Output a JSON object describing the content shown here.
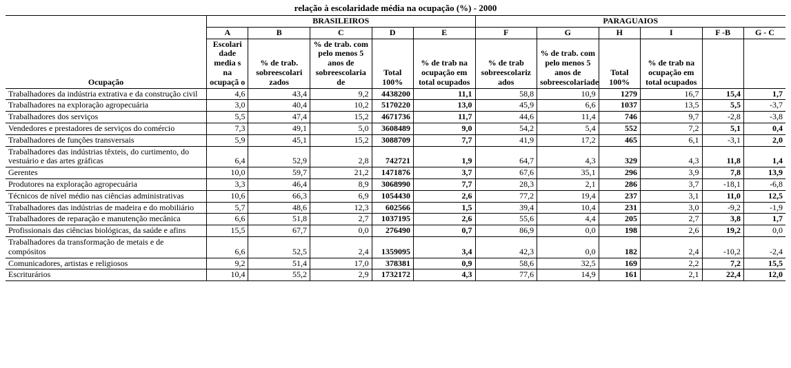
{
  "title_fragment": "relação à escolaridade média na ocupação (%) - 2000",
  "group_labels": {
    "br": "BRASILEIROS",
    "py": "PARAGUAIOS"
  },
  "col_letters": {
    "A": "A",
    "B": "B",
    "C": "C",
    "D": "D",
    "E": "E",
    "F": "F",
    "G": "G",
    "H": "H",
    "I": "I",
    "FB": "F -B",
    "GC": "G - C"
  },
  "col_headers": {
    "occ": "Ocupação",
    "A": "Escolari dade media s na ocupaçã o",
    "B": "% de trab. sobreescolari zados",
    "C": "% de trab. com pelo menos 5 anos de sobreescolaria de",
    "D": "Total\n100%",
    "E": "% de trab na ocupação em total ocupados",
    "F": "% de trab sobreescolariz ados",
    "G": "% de trab. com pelo menos 5 anos de sobreescolariade",
    "H": "Total\n100%",
    "I": "% de trab na ocupação em total ocupados"
  },
  "rows": [
    {
      "occ": "Trabalhadores da indústria extrativa e da construção civil",
      "A": "4,6",
      "B": "43,4",
      "C": "9,2",
      "D": "4438200",
      "E": "11,1",
      "F": "58,8",
      "G": "10,9",
      "H": "1279",
      "I": "16,7",
      "FB": "15,4",
      "GC": "1,7"
    },
    {
      "occ": "Trabalhadores na exploração agropecuária",
      "A": "3,0",
      "B": "40,4",
      "C": "10,2",
      "D": "5170220",
      "E": "13,0",
      "F": "45,9",
      "G": "6,6",
      "H": "1037",
      "I": "13,5",
      "FB": "5,5",
      "GC": "-3,7"
    },
    {
      "occ": "Trabalhadores dos serviços",
      "A": "5,5",
      "B": "47,4",
      "C": "15,2",
      "D": "4671736",
      "E": "11,7",
      "F": "44,6",
      "G": "11,4",
      "H": "746",
      "I": "9,7",
      "FB": "-2,8",
      "GC": "-3,8"
    },
    {
      "occ": "Vendedores e prestadores de serviços do comércio",
      "A": "7,3",
      "B": "49,1",
      "C": "5,0",
      "D": "3608489",
      "E": "9,0",
      "F": "54,2",
      "G": "5,4",
      "H": "552",
      "I": "7,2",
      "FB": "5,1",
      "GC": "0,4"
    },
    {
      "occ": "Trabalhadores de funções transversais",
      "A": "5,9",
      "B": "45,1",
      "C": "15,2",
      "D": "3088709",
      "E": "7,7",
      "F": "41,9",
      "G": "17,2",
      "H": "465",
      "I": "6,1",
      "FB": "-3,1",
      "GC": "2,0"
    },
    {
      "occ": "Trabalhadores das indústrias têxteis, do curtimento, do vestuário e das artes gráficas",
      "A": "6,4",
      "B": "52,9",
      "C": "2,8",
      "D": "742721",
      "E": "1,9",
      "F": "64,7",
      "G": "4,3",
      "H": "329",
      "I": "4,3",
      "FB": "11,8",
      "GC": "1,4"
    },
    {
      "occ": "Gerentes",
      "A": "10,0",
      "B": "59,7",
      "C": "21,2",
      "D": "1471876",
      "E": "3,7",
      "F": "67,6",
      "G": "35,1",
      "H": "296",
      "I": "3,9",
      "FB": "7,8",
      "GC": "13,9"
    },
    {
      "occ": "Produtores na exploração agropecuária",
      "A": "3,3",
      "B": "46,4",
      "C": "8,9",
      "D": "3068990",
      "E": "7,7",
      "F": "28,3",
      "G": "2,1",
      "H": "286",
      "I": "3,7",
      "FB": "-18,1",
      "GC": "-6,8"
    },
    {
      "occ": "Técnicos de nível médio nas ciências administrativas",
      "A": "10,6",
      "B": "66,3",
      "C": "6,9",
      "D": "1054430",
      "E": "2,6",
      "F": "77,2",
      "G": "19,4",
      "H": "237",
      "I": "3,1",
      "FB": "11,0",
      "GC": "12,5"
    },
    {
      "occ": "Trabalhadores das indústrias de madeira e do mobiliário",
      "A": "5,7",
      "B": "48,6",
      "C": "12,3",
      "D": "602566",
      "E": "1,5",
      "F": "39,4",
      "G": "10,4",
      "H": "231",
      "I": "3,0",
      "FB": "-9,2",
      "GC": "-1,9"
    },
    {
      "occ": "Trabalhadores de reparação e manutenção mecânica",
      "A": "6,6",
      "B": "51,8",
      "C": "2,7",
      "D": "1037195",
      "E": "2,6",
      "F": "55,6",
      "G": "4,4",
      "H": "205",
      "I": "2,7",
      "FB": "3,8",
      "GC": "1,7"
    },
    {
      "occ": "Profissionais das ciências biológicas, da saúde e afins",
      "A": "15,5",
      "B": "67,7",
      "C": "0,0",
      "D": "276490",
      "E": "0,7",
      "F": "86,9",
      "G": "0,0",
      "H": "198",
      "I": "2,6",
      "FB": "19,2",
      "GC": "0,0"
    },
    {
      "occ": "Trabalhadores da transformação de metais e de compósitos",
      "A": "6,6",
      "B": "52,5",
      "C": "2,4",
      "D": "1359095",
      "E": "3,4",
      "F": "42,3",
      "G": "0,0",
      "H": "182",
      "I": "2,4",
      "FB": "-10,2",
      "GC": "-2,4"
    },
    {
      "occ": "Comunicadores, artistas e religiosos",
      "A": "9,2",
      "B": "51,4",
      "C": "17,0",
      "D": "378381",
      "E": "0,9",
      "F": "58,6",
      "G": "32,5",
      "H": "169",
      "I": "2,2",
      "FB": "7,2",
      "GC": "15,5"
    },
    {
      "occ": "Escriturários",
      "A": "10,4",
      "B": "55,2",
      "C": "2,9",
      "D": "1732172",
      "E": "4,3",
      "F": "77,6",
      "G": "14,9",
      "H": "161",
      "I": "2,1",
      "FB": "22,4",
      "GC": "12,0"
    }
  ],
  "fb_bold": [
    true,
    true,
    false,
    true,
    false,
    true,
    true,
    false,
    true,
    false,
    true,
    true,
    false,
    true,
    true
  ],
  "gc_bold": [
    true,
    false,
    false,
    true,
    true,
    true,
    true,
    false,
    true,
    false,
    true,
    false,
    false,
    true,
    true
  ]
}
